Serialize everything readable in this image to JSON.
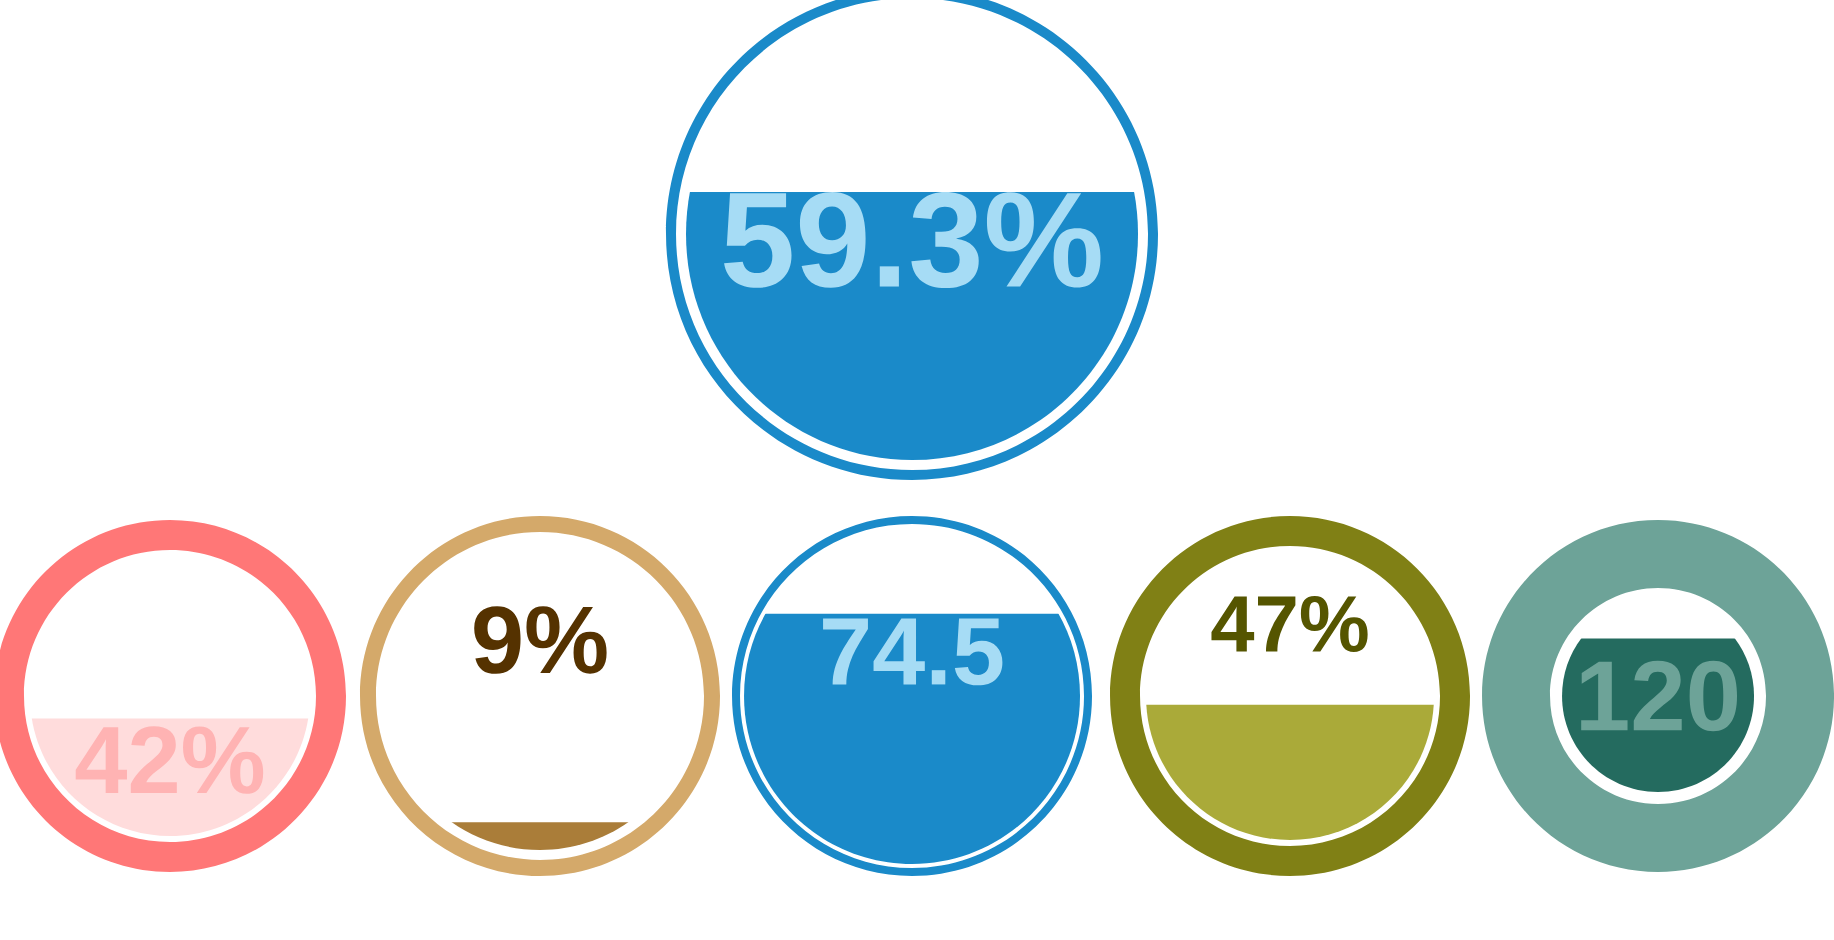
{
  "chart_data": [
    {
      "type": "other",
      "values": [
        59.3
      ],
      "value_labels": [
        "59.3%"
      ],
      "color": "#1a8ac9"
    },
    {
      "type": "other",
      "values": [
        42
      ],
      "value_labels": [
        "42%"
      ],
      "color": "#ffdcdc"
    },
    {
      "type": "other",
      "values": [
        9
      ],
      "value_labels": [
        "9%"
      ],
      "color": "#d4a96a"
    },
    {
      "type": "other",
      "values": [
        74.5
      ],
      "value_labels": [
        "74.5"
      ],
      "color": "#1a8ac9"
    },
    {
      "type": "other",
      "values": [
        47
      ],
      "value_labels": [
        "47%"
      ],
      "color": "#808015"
    },
    {
      "type": "other",
      "values": [
        120
      ],
      "value_labels": [
        "120"
      ],
      "color": "#6da398"
    }
  ]
}
